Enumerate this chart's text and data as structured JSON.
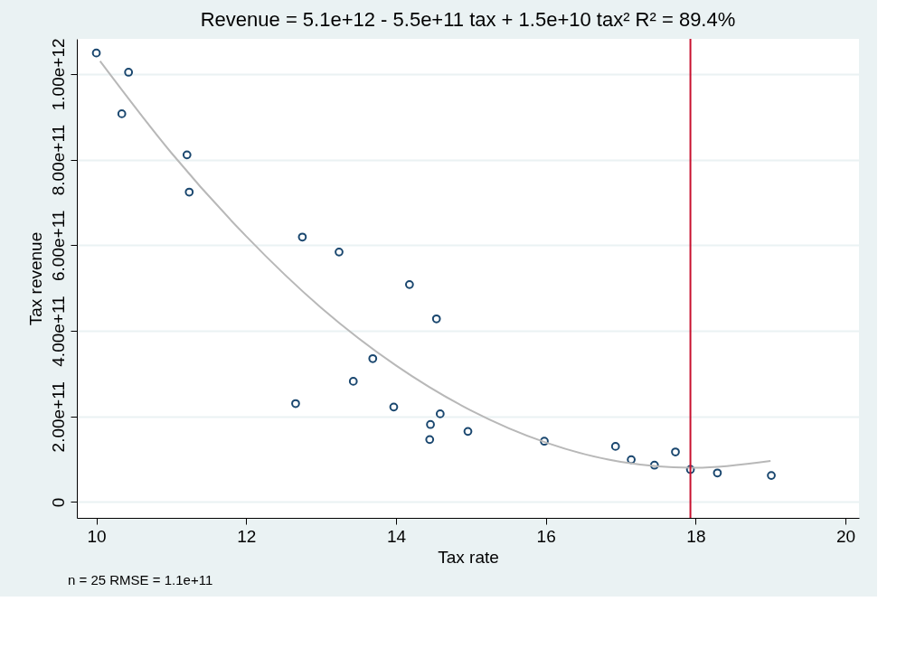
{
  "chart_data": {
    "type": "scatter",
    "title": "Revenue = 5.1e+12 - 5.5e+11 tax + 1.5e+10 tax²    R² = 89.4%",
    "xlabel": "Tax rate",
    "ylabel": "Tax revenue",
    "series": [
      {
        "color": "#1a476f",
        "marker": "circle",
        "x": [
          10.0,
          10.43,
          10.34,
          11.21,
          11.24,
          12.75,
          13.24,
          14.18,
          14.54,
          13.69,
          13.43,
          12.66,
          13.97,
          14.59,
          14.46,
          14.45,
          14.96,
          15.98,
          16.93,
          17.14,
          17.45,
          17.73,
          17.93,
          18.29,
          19.01
        ],
        "values": [
          1049000000000.0,
          1004000000000.0,
          907000000000.0,
          811000000000.0,
          724000000000.0,
          619000000000.0,
          584000000000.0,
          508000000000.0,
          428000000000.0,
          335000000000.0,
          282000000000.0,
          230000000000.0,
          222000000000.0,
          206000000000.0,
          181000000000.0,
          146000000000.0,
          165000000000.0,
          142000000000.0,
          130000000000.0,
          99000000000.0,
          86000000000.0,
          117000000000.0,
          76000000000.0,
          68000000000.0,
          62000000000.0
        ]
      },
      {
        "type": "line",
        "color": "#b8b8b8",
        "marker": "none",
        "line_style": "solid",
        "x": [
          10.05,
          11,
          12,
          13,
          14,
          15,
          16,
          17,
          18,
          19
        ],
        "values": [
          1030000000000.0,
          816000000000.0,
          621000000000.0,
          454000000000.0,
          319000000000.0,
          214000000000.0,
          139000000000.0,
          94000000000.0,
          80000000000.0,
          96000000000.0
        ]
      }
    ],
    "xlim": [
      9.74,
      20.18
    ],
    "xticks": [
      10,
      12,
      14,
      16,
      18,
      20
    ],
    "ylim": [
      -37000000000.0,
      1082000000000.0
    ],
    "yticks": [
      0,
      {
        "value": 200000000000.0,
        "label": "2.00e+11"
      },
      {
        "value": 400000000000.0,
        "label": "4.00e+11"
      },
      {
        "value": 600000000000.0,
        "label": "6.00e+11"
      },
      {
        "value": 800000000000.0,
        "label": "8.00e+11"
      },
      {
        "value": 1000000000000.0,
        "label": "1.00e+12"
      }
    ],
    "grid": "y",
    "legend": false,
    "ref_lines": [
      {
        "axis": "x",
        "value": 17.93,
        "color": "#c8102e",
        "line_style": "solid"
      }
    ],
    "annotations": [
      "n = 25    RMSE =  1.1e+11"
    ]
  }
}
